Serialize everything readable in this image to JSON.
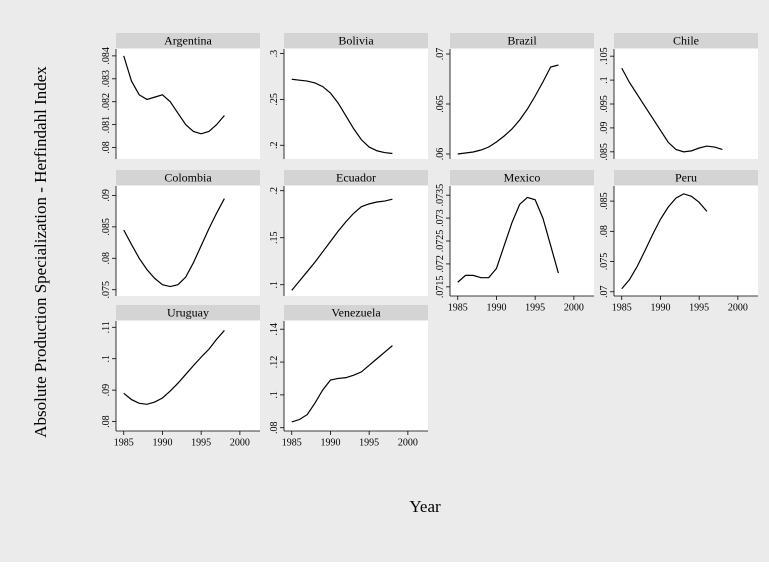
{
  "axis_titles": {
    "y": "Absolute Production Specialization - Herfindahl Index",
    "x": "Year"
  },
  "chart_data": [
    {
      "type": "line",
      "title": "Argentina",
      "x": [
        1985,
        1986,
        1987,
        1988,
        1989,
        1990,
        1991,
        1992,
        1993,
        1994,
        1995,
        1996,
        1997,
        1998
      ],
      "values": [
        0.084,
        0.0829,
        0.0823,
        0.0821,
        0.0822,
        0.0823,
        0.082,
        0.0815,
        0.081,
        0.0807,
        0.0806,
        0.0807,
        0.081,
        0.0814
      ],
      "xlim": [
        1984,
        2002.6
      ],
      "ylim": [
        0.0795,
        0.0843
      ],
      "yticks": [
        {
          "value": 0.08,
          "label": ".08"
        },
        {
          "value": 0.081,
          "label": ".081"
        },
        {
          "value": 0.082,
          "label": ".082"
        },
        {
          "value": 0.083,
          "label": ".083"
        },
        {
          "value": 0.084,
          "label": ".084"
        }
      ],
      "color": "#000000"
    },
    {
      "type": "line",
      "title": "Bolivia",
      "x": [
        1985,
        1986,
        1987,
        1988,
        1989,
        1990,
        1991,
        1992,
        1993,
        1994,
        1995,
        1996,
        1997,
        1998
      ],
      "values": [
        0.272,
        0.271,
        0.27,
        0.268,
        0.264,
        0.257,
        0.246,
        0.232,
        0.218,
        0.206,
        0.198,
        0.194,
        0.192,
        0.191
      ],
      "xlim": [
        1984,
        2002.6
      ],
      "ylim": [
        0.185,
        0.305
      ],
      "yticks": [
        {
          "value": 0.2,
          "label": ".2"
        },
        {
          "value": 0.25,
          "label": ".25"
        },
        {
          "value": 0.3,
          "label": ".3"
        }
      ],
      "color": "#000000"
    },
    {
      "type": "line",
      "title": "Brazil",
      "x": [
        1985,
        1986,
        1987,
        1988,
        1989,
        1990,
        1991,
        1992,
        1993,
        1994,
        1995,
        1996,
        1997,
        1998
      ],
      "values": [
        0.06,
        0.0601,
        0.0602,
        0.0604,
        0.0607,
        0.0612,
        0.0618,
        0.0625,
        0.0634,
        0.0645,
        0.0658,
        0.0672,
        0.0687,
        0.0689
      ],
      "xlim": [
        1984,
        2002.6
      ],
      "ylim": [
        0.0595,
        0.0705
      ],
      "yticks": [
        {
          "value": 0.06,
          "label": ".06"
        },
        {
          "value": 0.065,
          "label": ".065"
        },
        {
          "value": 0.07,
          "label": ".07"
        }
      ],
      "color": "#000000"
    },
    {
      "type": "line",
      "title": "Chile",
      "x": [
        1985,
        1986,
        1987,
        1988,
        1989,
        1990,
        1991,
        1992,
        1993,
        1994,
        1995,
        1996,
        1997,
        1998
      ],
      "values": [
        0.1025,
        0.0995,
        0.097,
        0.0945,
        0.092,
        0.0895,
        0.087,
        0.0855,
        0.085,
        0.0852,
        0.0858,
        0.0862,
        0.086,
        0.0855
      ],
      "xlim": [
        1984,
        2002.6
      ],
      "ylim": [
        0.0835,
        0.1065
      ],
      "yticks": [
        {
          "value": 0.085,
          "label": ".085"
        },
        {
          "value": 0.09,
          "label": ".09"
        },
        {
          "value": 0.095,
          "label": ".095"
        },
        {
          "value": 0.1,
          "label": ".1"
        },
        {
          "value": 0.105,
          "label": ".105"
        }
      ],
      "color": "#000000"
    },
    {
      "type": "line",
      "title": "Colombia",
      "x": [
        1985,
        1986,
        1987,
        1988,
        1989,
        1990,
        1991,
        1992,
        1993,
        1994,
        1995,
        1996,
        1997,
        1998
      ],
      "values": [
        0.0845,
        0.0822,
        0.08,
        0.0782,
        0.0768,
        0.0758,
        0.0755,
        0.0758,
        0.077,
        0.0793,
        0.082,
        0.0847,
        0.0872,
        0.0895
      ],
      "xlim": [
        1984,
        2002.6
      ],
      "ylim": [
        0.074,
        0.0915
      ],
      "yticks": [
        {
          "value": 0.075,
          "label": ".075"
        },
        {
          "value": 0.08,
          "label": ".08"
        },
        {
          "value": 0.085,
          "label": ".085"
        },
        {
          "value": 0.09,
          "label": ".09"
        }
      ],
      "color": "#000000"
    },
    {
      "type": "line",
      "title": "Ecuador",
      "x": [
        1985,
        1986,
        1987,
        1988,
        1989,
        1990,
        1991,
        1992,
        1993,
        1994,
        1995,
        1996,
        1997,
        1998
      ],
      "values": [
        0.094,
        0.104,
        0.114,
        0.124,
        0.135,
        0.146,
        0.157,
        0.167,
        0.176,
        0.183,
        0.186,
        0.188,
        0.189,
        0.191
      ],
      "xlim": [
        1984,
        2002.6
      ],
      "ylim": [
        0.088,
        0.205
      ],
      "yticks": [
        {
          "value": 0.1,
          "label": ".1"
        },
        {
          "value": 0.15,
          "label": ".15"
        },
        {
          "value": 0.2,
          "label": ".2"
        }
      ],
      "color": "#000000"
    },
    {
      "type": "line",
      "title": "Mexico",
      "x": [
        1985,
        1986,
        1987,
        1988,
        1989,
        1990,
        1991,
        1992,
        1993,
        1994,
        1995,
        1996,
        1997,
        1998
      ],
      "values": [
        0.0716,
        0.07175,
        0.07175,
        0.0717,
        0.0717,
        0.0719,
        0.0724,
        0.0729,
        0.0733,
        0.07345,
        0.0734,
        0.073,
        0.0724,
        0.0718
      ],
      "xlim": [
        1984,
        2002.6
      ],
      "ylim": [
        0.0713,
        0.0737
      ],
      "xticks": [
        1985,
        1990,
        1995,
        2000
      ],
      "yticks": [
        {
          "value": 0.0715,
          "label": ".0715"
        },
        {
          "value": 0.072,
          "label": ".072"
        },
        {
          "value": 0.0725,
          "label": ".0725"
        },
        {
          "value": 0.073,
          "label": ".073"
        },
        {
          "value": 0.0735,
          "label": ".0735"
        }
      ],
      "color": "#000000"
    },
    {
      "type": "line",
      "title": "Peru",
      "x": [
        1985,
        1986,
        1987,
        1988,
        1989,
        1990,
        1991,
        1992,
        1993,
        1994,
        1995,
        1996
      ],
      "values": [
        0.0705,
        0.072,
        0.0742,
        0.0768,
        0.0795,
        0.082,
        0.084,
        0.0855,
        0.0862,
        0.0858,
        0.0848,
        0.0833
      ],
      "xlim": [
        1984,
        2002.6
      ],
      "ylim": [
        0.0693,
        0.0875
      ],
      "xticks": [
        1985,
        1990,
        1995,
        2000
      ],
      "yticks": [
        {
          "value": 0.07,
          "label": ".07"
        },
        {
          "value": 0.075,
          "label": ".075"
        },
        {
          "value": 0.08,
          "label": ".08"
        },
        {
          "value": 0.085,
          "label": ".085"
        }
      ],
      "color": "#000000"
    },
    {
      "type": "line",
      "title": "Uruguay",
      "x": [
        1985,
        1986,
        1987,
        1988,
        1989,
        1990,
        1991,
        1992,
        1993,
        1994,
        1995,
        1996,
        1997,
        1998
      ],
      "values": [
        0.089,
        0.087,
        0.0858,
        0.0855,
        0.0862,
        0.0875,
        0.0897,
        0.0922,
        0.095,
        0.0978,
        0.1005,
        0.103,
        0.1062,
        0.109
      ],
      "xlim": [
        1984,
        2002.6
      ],
      "ylim": [
        0.077,
        0.112
      ],
      "xticks": [
        1985,
        1990,
        1995,
        2000
      ],
      "yticks": [
        {
          "value": 0.08,
          "label": ".08"
        },
        {
          "value": 0.09,
          "label": ".09"
        },
        {
          "value": 0.1,
          "label": ".1"
        },
        {
          "value": 0.11,
          "label": ".11"
        }
      ],
      "color": "#000000"
    },
    {
      "type": "line",
      "title": "Venezuela",
      "x": [
        1985,
        1986,
        1987,
        1988,
        1989,
        1990,
        1991,
        1992,
        1993,
        1994,
        1995,
        1996,
        1997,
        1998
      ],
      "values": [
        0.0835,
        0.085,
        0.088,
        0.095,
        0.103,
        0.109,
        0.11,
        0.1105,
        0.112,
        0.114,
        0.118,
        0.122,
        0.126,
        0.13
      ],
      "xlim": [
        1984,
        2002.6
      ],
      "ylim": [
        0.078,
        0.145
      ],
      "xticks": [
        1985,
        1990,
        1995,
        2000
      ],
      "yticks": [
        {
          "value": 0.08,
          "label": ".08"
        },
        {
          "value": 0.1,
          "label": ".1"
        },
        {
          "value": 0.12,
          "label": ".12"
        },
        {
          "value": 0.14,
          "label": ".14"
        }
      ],
      "color": "#000000"
    }
  ]
}
